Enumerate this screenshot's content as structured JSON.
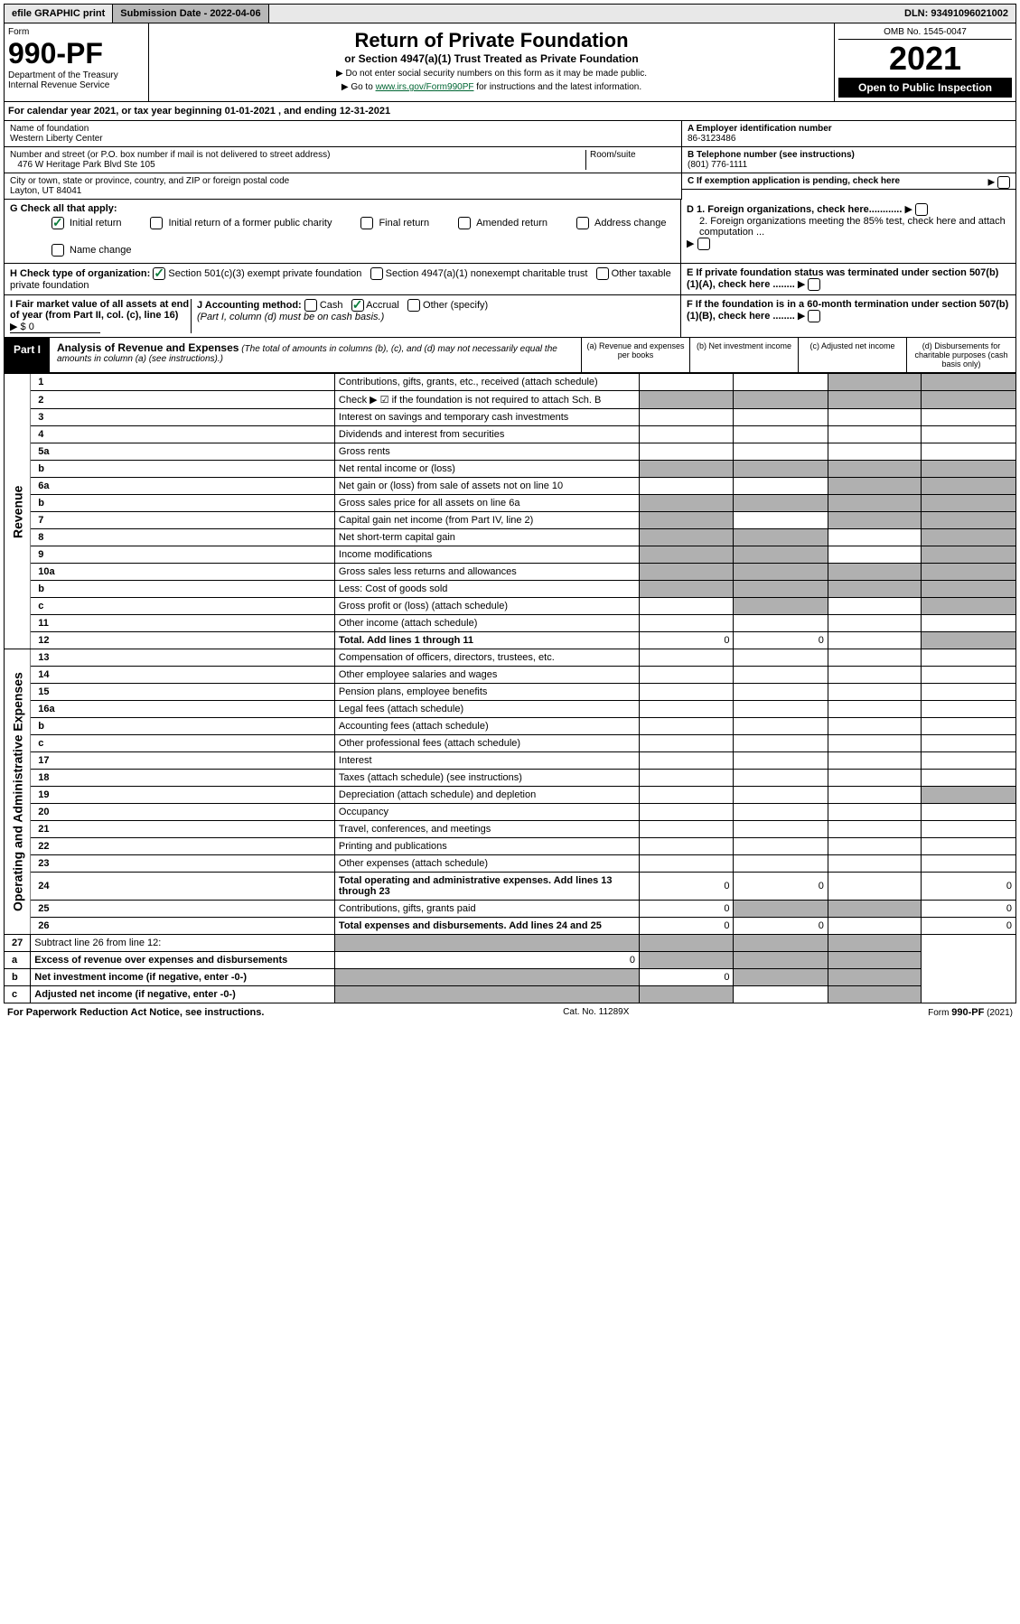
{
  "topbar": {
    "efile": "efile GRAPHIC print",
    "sub_date_label": "Submission Date - 2022-04-06",
    "dln": "DLN: 93491096021002"
  },
  "header": {
    "form_label": "Form",
    "form_no": "990-PF",
    "dept": "Department of the Treasury",
    "irs": "Internal Revenue Service",
    "title": "Return of Private Foundation",
    "subtitle": "or Section 4947(a)(1) Trust Treated as Private Foundation",
    "note1": "▶ Do not enter social security numbers on this form as it may be made public.",
    "note2_pre": "▶ Go to ",
    "note2_link": "www.irs.gov/Form990PF",
    "note2_post": " for instructions and the latest information.",
    "omb": "OMB No. 1545-0047",
    "year": "2021",
    "open": "Open to Public Inspection"
  },
  "calendar": "For calendar year 2021, or tax year beginning 01-01-2021                          , and ending 12-31-2021",
  "name_block": {
    "name_label": "Name of foundation",
    "name_val": "Western Liberty Center",
    "addr_label": "Number and street (or P.O. box number if mail is not delivered to street address)",
    "addr_val": "476 W Heritage Park Blvd Ste 105",
    "room_label": "Room/suite",
    "city_label": "City or town, state or province, country, and ZIP or foreign postal code",
    "city_val": "Layton, UT  84041"
  },
  "abc": {
    "a_label": "A Employer identification number",
    "a_val": "86-3123486",
    "b_label": "B Telephone number (see instructions)",
    "b_val": "(801) 776-1111",
    "c_label": "C If exemption application is pending, check here"
  },
  "g": {
    "label": "G Check all that apply:",
    "opts": [
      "Initial return",
      "Initial return of a former public charity",
      "Final return",
      "Amended return",
      "Address change",
      "Name change"
    ],
    "checked": [
      0
    ]
  },
  "h": {
    "label": "H Check type of organization:",
    "opts": [
      "Section 501(c)(3) exempt private foundation",
      "Section 4947(a)(1) nonexempt charitable trust",
      "Other taxable private foundation"
    ],
    "checked": [
      0
    ]
  },
  "i": {
    "label": "I Fair market value of all assets at end of year (from Part II, col. (c), line 16)",
    "val": "▶ $ 0"
  },
  "j": {
    "label": "J Accounting method:",
    "opts": [
      "Cash",
      "Accrual",
      "Other (specify)"
    ],
    "note": "(Part I, column (d) must be on cash basis.)",
    "checked": [
      1
    ]
  },
  "d": {
    "d1": "D 1. Foreign organizations, check here............",
    "d2": "2. Foreign organizations meeting the 85% test, check here and attach computation ..."
  },
  "e": "E  If private foundation status was terminated under section 507(b)(1)(A), check here ........",
  "f": "F  If the foundation is in a 60-month termination under section 507(b)(1)(B), check here ........",
  "part1": {
    "label": "Part I",
    "title": "Analysis of Revenue and Expenses",
    "note": "(The total of amounts in columns (b), (c), and (d) may not necessarily equal the amounts in column (a) (see instructions).)",
    "cols": [
      "(a)  Revenue and expenses per books",
      "(b)  Net investment income",
      "(c)  Adjusted net income",
      "(d)  Disbursements for charitable purposes (cash basis only)"
    ]
  },
  "revenue": {
    "section": "Revenue",
    "lines": [
      {
        "n": "1",
        "t": "Contributions, gifts, grants, etc., received (attach schedule)"
      },
      {
        "n": "2",
        "t": "Check ▶ ☑ if the foundation is not required to attach Sch. B"
      },
      {
        "n": "3",
        "t": "Interest on savings and temporary cash investments"
      },
      {
        "n": "4",
        "t": "Dividends and interest from securities"
      },
      {
        "n": "5a",
        "t": "Gross rents"
      },
      {
        "n": "b",
        "t": "Net rental income or (loss)"
      },
      {
        "n": "6a",
        "t": "Net gain or (loss) from sale of assets not on line 10"
      },
      {
        "n": "b",
        "t": "Gross sales price for all assets on line 6a"
      },
      {
        "n": "7",
        "t": "Capital gain net income (from Part IV, line 2)"
      },
      {
        "n": "8",
        "t": "Net short-term capital gain"
      },
      {
        "n": "9",
        "t": "Income modifications"
      },
      {
        "n": "10a",
        "t": "Gross sales less returns and allowances"
      },
      {
        "n": "b",
        "t": "Less: Cost of goods sold"
      },
      {
        "n": "c",
        "t": "Gross profit or (loss) (attach schedule)"
      },
      {
        "n": "11",
        "t": "Other income (attach schedule)"
      },
      {
        "n": "12",
        "t": "Total. Add lines 1 through 11",
        "bold": true,
        "a": "0",
        "b": "0"
      }
    ]
  },
  "expenses": {
    "section": "Operating and Administrative Expenses",
    "lines": [
      {
        "n": "13",
        "t": "Compensation of officers, directors, trustees, etc."
      },
      {
        "n": "14",
        "t": "Other employee salaries and wages"
      },
      {
        "n": "15",
        "t": "Pension plans, employee benefits"
      },
      {
        "n": "16a",
        "t": "Legal fees (attach schedule)"
      },
      {
        "n": "b",
        "t": "Accounting fees (attach schedule)"
      },
      {
        "n": "c",
        "t": "Other professional fees (attach schedule)"
      },
      {
        "n": "17",
        "t": "Interest"
      },
      {
        "n": "18",
        "t": "Taxes (attach schedule) (see instructions)"
      },
      {
        "n": "19",
        "t": "Depreciation (attach schedule) and depletion"
      },
      {
        "n": "20",
        "t": "Occupancy"
      },
      {
        "n": "21",
        "t": "Travel, conferences, and meetings"
      },
      {
        "n": "22",
        "t": "Printing and publications"
      },
      {
        "n": "23",
        "t": "Other expenses (attach schedule)"
      },
      {
        "n": "24",
        "t": "Total operating and administrative expenses. Add lines 13 through 23",
        "bold": true,
        "a": "0",
        "b": "0",
        "d": "0"
      },
      {
        "n": "25",
        "t": "Contributions, gifts, grants paid",
        "a": "0",
        "d": "0"
      },
      {
        "n": "26",
        "t": "Total expenses and disbursements. Add lines 24 and 25",
        "bold": true,
        "a": "0",
        "b": "0",
        "d": "0"
      }
    ]
  },
  "net": {
    "lines": [
      {
        "n": "27",
        "t": "Subtract line 26 from line 12:"
      },
      {
        "n": "a",
        "t": "Excess of revenue over expenses and disbursements",
        "bold": true,
        "a": "0"
      },
      {
        "n": "b",
        "t": "Net investment income (if negative, enter -0-)",
        "bold": true,
        "b": "0"
      },
      {
        "n": "c",
        "t": "Adjusted net income (if negative, enter -0-)",
        "bold": true
      }
    ]
  },
  "footer": {
    "left": "For Paperwork Reduction Act Notice, see instructions.",
    "mid": "Cat. No. 11289X",
    "right": "Form 990-PF (2021)"
  },
  "shading": {
    "revenue": {
      "1": [
        "c",
        "d"
      ],
      "2": [
        "a",
        "b",
        "c",
        "d"
      ],
      "5b": [
        "a",
        "b",
        "c",
        "d"
      ],
      "6a": [
        "c",
        "d"
      ],
      "6b": [
        "a",
        "b",
        "c",
        "d"
      ],
      "7": [
        "a",
        "c",
        "d"
      ],
      "8": [
        "a",
        "b",
        "d"
      ],
      "9": [
        "a",
        "b",
        "d"
      ],
      "10a": [
        "a",
        "b",
        "c",
        "d"
      ],
      "10b": [
        "a",
        "b",
        "c",
        "d"
      ],
      "10c": [
        "b",
        "d"
      ],
      "12": [
        "d"
      ]
    },
    "expenses": {
      "19": [
        "d"
      ],
      "25": [
        "b",
        "c"
      ]
    },
    "net": {
      "27": [
        "a",
        "b",
        "c",
        "d"
      ],
      "a": [
        "b",
        "c",
        "d"
      ],
      "b": [
        "a",
        "c",
        "d"
      ],
      "c": [
        "a",
        "b",
        "d"
      ]
    }
  }
}
